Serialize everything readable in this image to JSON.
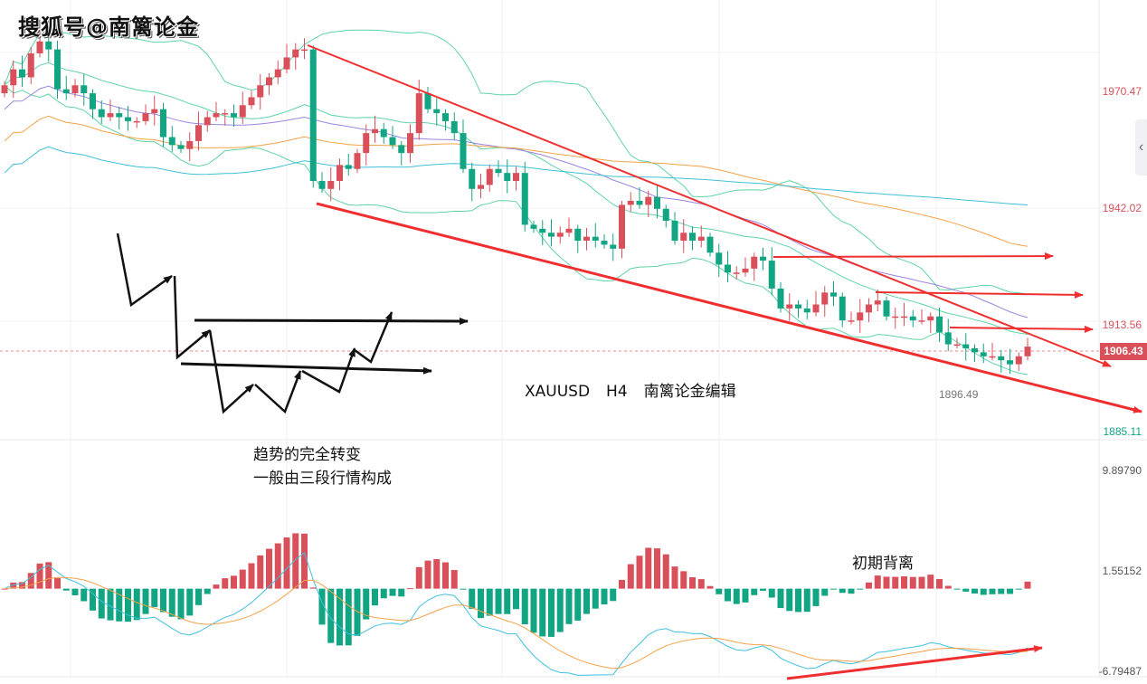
{
  "watermark": "搜狐号@南篱论金",
  "annotations": {
    "symbol": "XAUUSD",
    "timeframe": "H4",
    "editor": "南篱论金编辑",
    "note_line1": "趋势的完全转变",
    "note_line2": "一般由三段行情构成",
    "divergence": "初期背离"
  },
  "toggle_icon": "chevron-left-icon",
  "colors": {
    "up": "#d9505a",
    "down": "#12a583",
    "bb": "#5fd3a6",
    "ma_purple": "#9b84e0",
    "ma_orange": "#f4a24a",
    "ma_cyan": "#3fc0d6",
    "trend": "#ef2f2f",
    "dif": "#3fc0e0",
    "dea": "#f4a24a"
  },
  "chart_data": [
    {
      "type": "candlestick",
      "title": "XAUUSD H4",
      "ylim": [
        1885.11,
        1970.47
      ],
      "y_ticks": [
        "1970.47",
        "1942.02",
        "1913.56",
        "1885.11"
      ],
      "last_price": "1906.43",
      "low_marker": "1896.49",
      "closes": [
        1972,
        1976,
        1974,
        1980,
        1983,
        1981,
        1971,
        1970,
        1972,
        1970,
        1966,
        1964,
        1965,
        1964,
        1963,
        1963,
        1965,
        1966,
        1959,
        1957,
        1956,
        1958,
        1962,
        1964,
        1965,
        1965,
        1964,
        1967,
        1969,
        1972,
        1974,
        1976,
        1979,
        1981,
        1981,
        1948,
        1946,
        1948,
        1952,
        1951,
        1955,
        1960,
        1961,
        1959,
        1957,
        1955,
        1960,
        1970,
        1966,
        1965,
        1963,
        1960,
        1951,
        1946,
        1947,
        1951,
        1950,
        1948,
        1950,
        1937,
        1936,
        1935,
        1934,
        1935,
        1936,
        1933,
        1934,
        1933,
        1932,
        1931,
        1942,
        1943,
        1942,
        1944,
        1941,
        1938,
        1933,
        1935,
        1933,
        1934,
        1930,
        1927,
        1925,
        1925,
        1926,
        1929,
        1928,
        1921,
        1916,
        1917,
        1916,
        1915,
        1917,
        1920,
        1919,
        1913,
        1913,
        1915,
        1917,
        1918,
        1914,
        1914,
        1914,
        1913,
        1913,
        1914,
        1910,
        1907,
        1907,
        1906,
        1905,
        1904,
        1904,
        1903,
        1902,
        1904,
        1906.43
      ],
      "indicators": [
        "Bollinger(20,2)",
        "MA",
        "MA",
        "MA"
      ]
    },
    {
      "type": "macd",
      "ylim": [
        -6.79487,
        9.8979
      ],
      "y_ticks": [
        "9.89790",
        "1.55152",
        "-6.79487"
      ],
      "series": [
        "DIF",
        "DEA",
        "MACD histogram"
      ]
    }
  ]
}
